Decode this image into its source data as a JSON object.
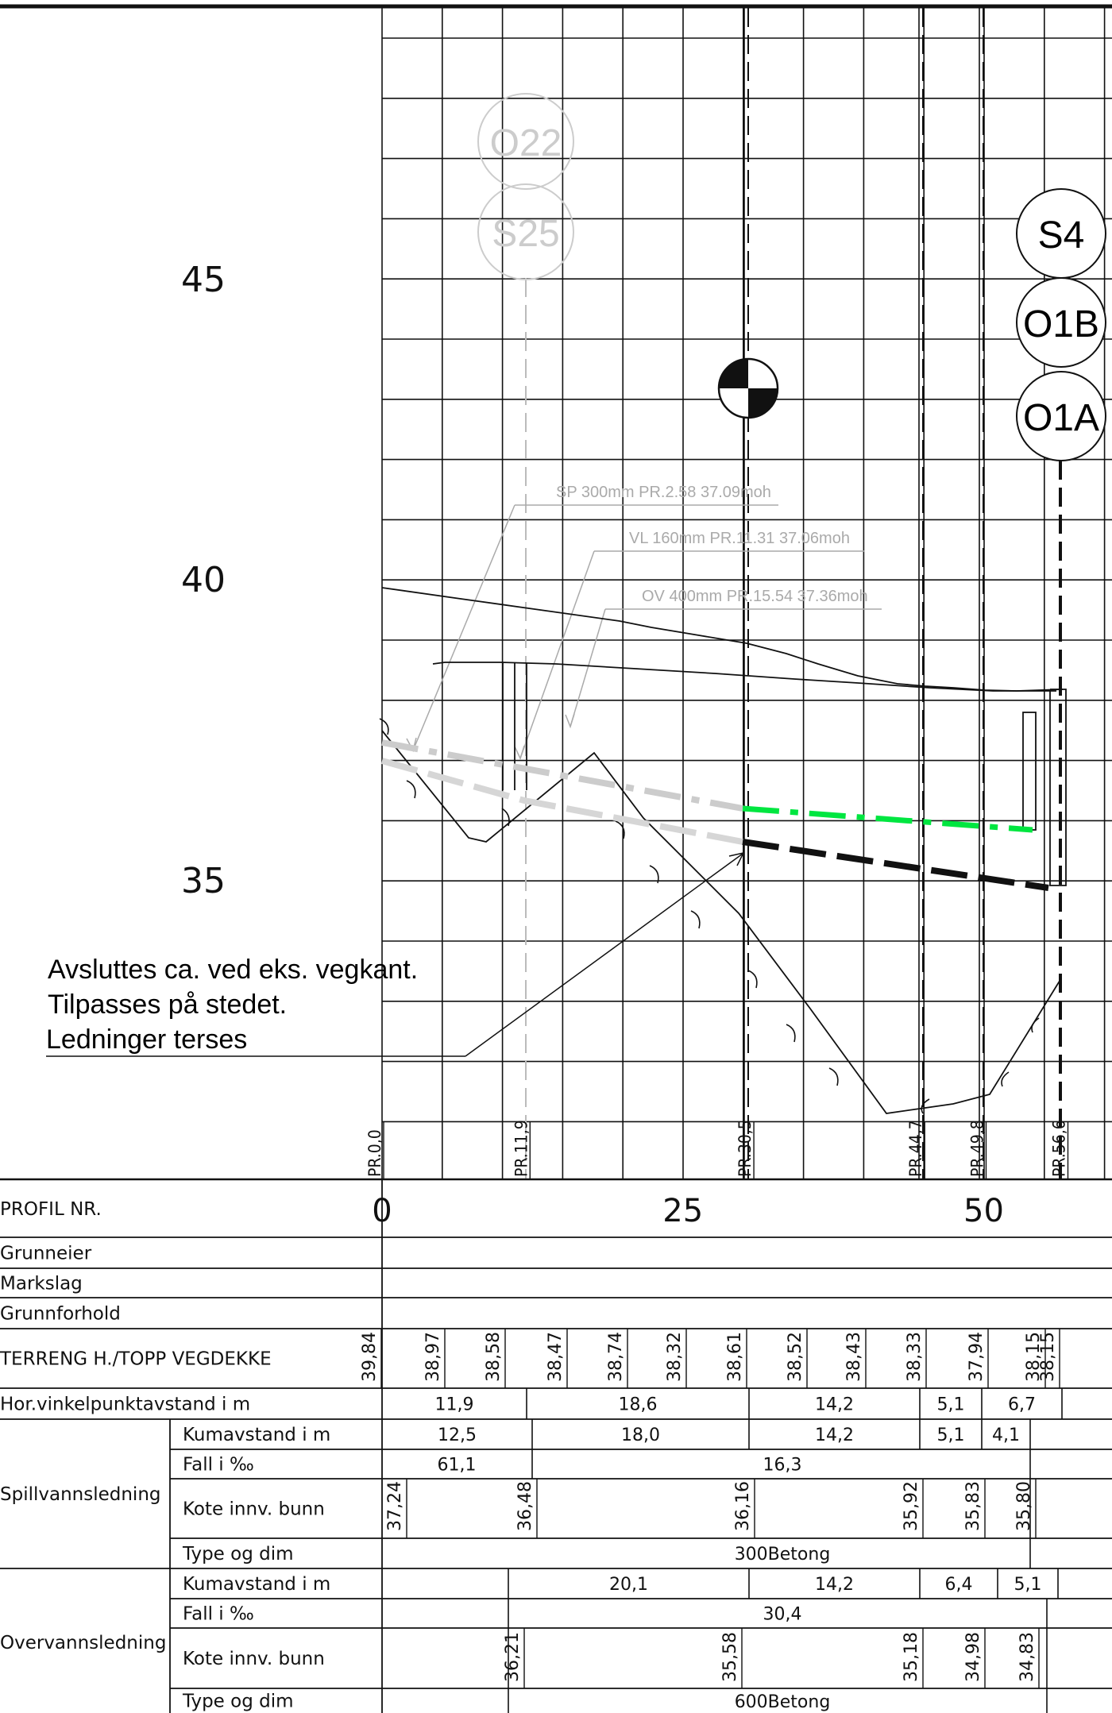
{
  "elevation_labels": [
    {
      "value": "45",
      "elev": 45
    },
    {
      "value": "40",
      "elev": 40
    },
    {
      "value": "35",
      "elev": 35
    }
  ],
  "chainage_ticks": [
    {
      "label": "0",
      "ch": 0
    },
    {
      "label": "25",
      "ch": 25
    },
    {
      "label": "50",
      "ch": 50
    }
  ],
  "profile_markers": [
    {
      "label": "PR.0,0",
      "ch": 0
    },
    {
      "label": "PR.11,9",
      "ch": 11.9
    },
    {
      "label": "PR.30,5",
      "ch": 30.5
    },
    {
      "label": "PR.44,7",
      "ch": 44.7
    },
    {
      "label": "PR.49,8",
      "ch": 49.8
    },
    {
      "label": "PR.56,6",
      "ch": 56.6
    }
  ],
  "manholes": [
    {
      "label": "O22",
      "style": "gray"
    },
    {
      "label": "S25",
      "style": "gray"
    },
    {
      "label": "S4",
      "style": "black"
    },
    {
      "label": "O1B",
      "style": "black"
    },
    {
      "label": "O1A",
      "style": "black"
    }
  ],
  "callouts": [
    {
      "text": "SP 300mm PR.2.58 37.09moh"
    },
    {
      "text": "VL 160mm PR.11.31 37.06moh"
    },
    {
      "text": "OV 400mm PR.15.54 37.36moh"
    }
  ],
  "note_lines": [
    "Avsluttes ca. ved eks. vegkant.",
    "Tilpasses på stedet.",
    "Ledninger terses"
  ],
  "table": {
    "profil_nr_label": "PROFIL NR.",
    "grunneier_label": "Grunneier",
    "markslag_label": "Markslag",
    "grunnforhold_label": "Grunnforhold",
    "terreng_label": "TERRENG H./TOPP VEGDEKKE",
    "terreng_values": [
      "39,84",
      "38,97",
      "38,58",
      "38,47",
      "38,74",
      "38,32",
      "38,61",
      "38,52",
      "38,43",
      "38,33",
      "37,94",
      "38,15",
      "38,15"
    ],
    "hor_label": "Hor.vinkelpunktavstand i m",
    "hor_values": [
      "11,9",
      "18,6",
      "14,2",
      "5,1",
      "6,7"
    ],
    "spill": {
      "group_label": "Spillvannsledning",
      "kumavstand_label": "Kumavstand i m",
      "kumavstand_values": [
        "12,5",
        "18,0",
        "14,2",
        "5,1",
        "4,1"
      ],
      "fall_label": "Fall i ‰",
      "fall_values": [
        "61,1",
        "16,3"
      ],
      "kote_label": "Kote innv. bunn",
      "kote_values": [
        "37,24",
        "36,48",
        "36,16",
        "35,92",
        "35,83",
        "35,80"
      ],
      "type_label": "Type og dim",
      "type_value": "300Betong"
    },
    "over": {
      "group_label": "Overvannsledning",
      "kumavstand_label": "Kumavstand i m",
      "kumavstand_values": [
        "20,1",
        "14,2",
        "6,4",
        "5,1"
      ],
      "fall_label": "Fall i ‰",
      "fall_value": "30,4",
      "kote_label": "Kote innv. bunn",
      "kote_values": [
        "36,21",
        "35,58",
        "35,18",
        "34,98",
        "34,83"
      ],
      "type_label": "Type og dim",
      "type_value": "600Betong"
    }
  },
  "colors": {
    "ink": "#111111",
    "gray": "#cccccc",
    "green": "#00e640"
  }
}
